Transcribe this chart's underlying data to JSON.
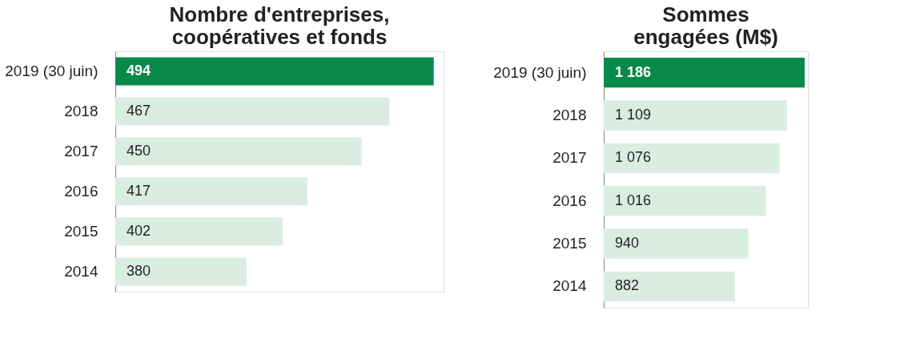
{
  "chart_data": [
    {
      "type": "bar",
      "orientation": "horizontal",
      "title": "Nombre d'entreprises,\ncoopératives et fonds",
      "categories": [
        "2019 (30 juin)",
        "2018",
        "2017",
        "2016",
        "2015",
        "2014"
      ],
      "values": [
        494,
        467,
        450,
        417,
        402,
        380
      ],
      "colors": [
        "#0a8a4a",
        "#d9ede3",
        "#d9ede3",
        "#d9ede3",
        "#d9ede3",
        "#d9ede3"
      ],
      "data_labels": true,
      "xlim": [
        300,
        500
      ],
      "tick_labels": "y"
    },
    {
      "type": "bar",
      "orientation": "horizontal",
      "title": "Sommes\nengagées (M$)",
      "categories": [
        "2019 (30 juin)",
        "2018",
        "2017",
        "2016",
        "2015",
        "2014"
      ],
      "values": [
        1186,
        1109,
        1076,
        1016,
        940,
        882
      ],
      "colors": [
        "#0a8a4a",
        "#d9ede3",
        "#d9ede3",
        "#d9ede3",
        "#d9ede3",
        "#d9ede3"
      ],
      "data_labels": true,
      "xlim": [
        310,
        1200
      ],
      "tick_labels": "y"
    }
  ]
}
